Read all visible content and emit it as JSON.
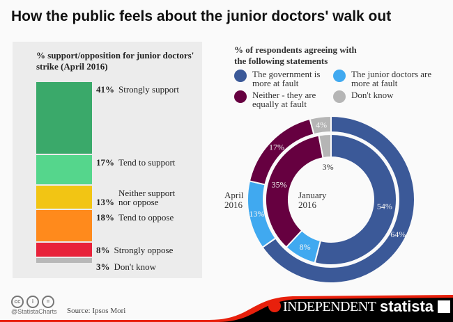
{
  "title": "How the public feels about the junior doctors' walk out",
  "chart_data": [
    {
      "type": "bar",
      "stacked": true,
      "title": "% support/opposition for junior doctors' strike (April 2016)",
      "categories": [
        "Strongly support",
        "Tend to support",
        "Neither support nor oppose",
        "Tend to oppose",
        "Strongly oppose",
        "Don't know"
      ],
      "values": [
        41,
        17,
        13,
        18,
        8,
        3
      ],
      "colors": [
        "#3aa96a",
        "#55d68c",
        "#f2c514",
        "#ff8a1c",
        "#e8223a",
        "#b8b8b8"
      ]
    },
    {
      "type": "pie",
      "subtype": "donut",
      "title": "% of respondents agreeing with the following statements",
      "categories": [
        "The government is more at fault",
        "The junior doctors are more at fault",
        "Neither - they are equally at fault",
        "Don't know"
      ],
      "colors": [
        "#3b5998",
        "#40a9f0",
        "#660040",
        "#b5b5b5"
      ],
      "series": [
        {
          "name": "April 2016",
          "values": [
            64,
            13,
            17,
            4
          ]
        },
        {
          "name": "January 2016",
          "values": [
            54,
            8,
            35,
            3
          ]
        }
      ]
    }
  ],
  "footer": {
    "handle": "@StatistaCharts",
    "source": "Source: Ipsos Mori",
    "partner": "INDEPENDENT",
    "brand": "statista"
  }
}
